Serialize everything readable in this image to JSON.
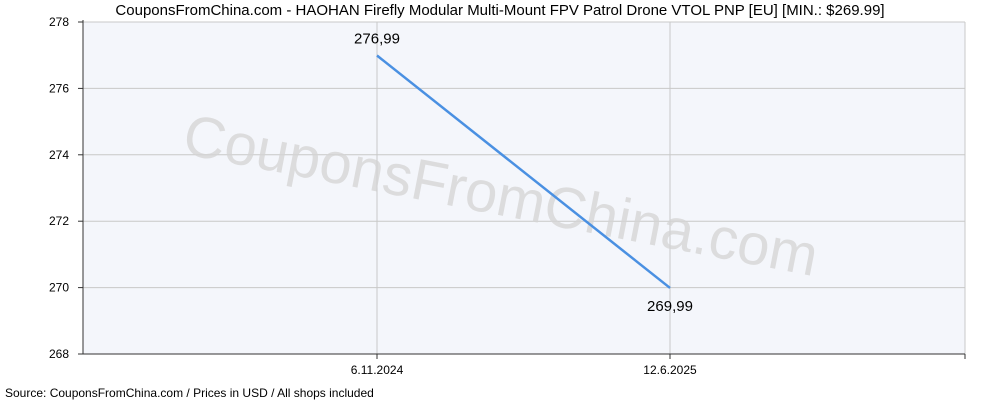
{
  "chart_data": {
    "type": "line",
    "title": "CouponsFromChina.com - HAOHAN Firefly Modular Multi-Mount FPV Patrol Drone VTOL PNP [EU] [MIN.: $269.99]",
    "x": [
      "6.11.2024",
      "12.6.2025"
    ],
    "series": [
      {
        "values": [
          276.99,
          269.99
        ],
        "labels": [
          "276,99",
          "269,99"
        ],
        "color": "#4a90e2"
      }
    ],
    "ylim": [
      268,
      278
    ],
    "yticks": [
      "268",
      "270",
      "272",
      "274",
      "276",
      "278"
    ],
    "grid": true,
    "watermark": "CouponsFromChina.com",
    "source": "Source: CouponsFromChina.com / Prices in USD / All shops included"
  }
}
